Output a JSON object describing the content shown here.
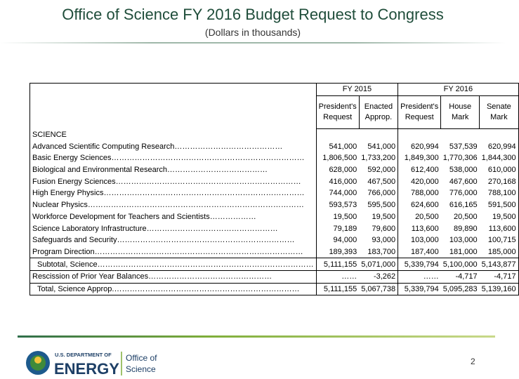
{
  "header": {
    "title": "Office of Science FY 2016 Budget Request to Congress",
    "subtitle": "(Dollars in thousands)"
  },
  "table": {
    "groups": [
      "FY 2015",
      "FY 2016"
    ],
    "columns": [
      "President's Request",
      "Enacted Approp.",
      "President's Request",
      "House Mark",
      "Senate Mark"
    ],
    "section": "SCIENCE",
    "rows": [
      [
        "Advanced Scientific Computing Research……………………………………",
        "541,000",
        "541,000",
        "620,994",
        "537,539",
        "620,994"
      ],
      [
        "Basic Energy Sciences…………………………………………………………………",
        "1,806,500",
        "1,733,200",
        "1,849,300",
        "1,770,306",
        "1,844,300"
      ],
      [
        "Biological and Environmental Research…………………………………",
        "628,000",
        "592,000",
        "612,400",
        "538,000",
        "610,000"
      ],
      [
        "Fusion Energy Sciences………………………………………………………………",
        "416,000",
        "467,500",
        "420,000",
        "467,600",
        "270,168"
      ],
      [
        "High Energy Physics……………………………………………………………………",
        "744,000",
        "766,000",
        "788,000",
        "776,000",
        "788,100"
      ],
      [
        "Nuclear Physics…………………………………………………………………………",
        "593,573",
        "595,500",
        "624,600",
        "616,165",
        "591,500"
      ],
      [
        "Workforce Development for Teachers and Scientists………………",
        "19,500",
        "19,500",
        "20,500",
        "20,500",
        "19,500"
      ],
      [
        "Science Laboratory Infrastructure……………………………………………",
        "79,189",
        "79,600",
        "113,600",
        "89,890",
        "113,600"
      ],
      [
        "Safeguards and Security……………………………………………………………",
        "94,000",
        "93,000",
        "103,000",
        "103,000",
        "100,715"
      ],
      [
        "Program Direction………………………………………………………………………",
        "189,393",
        "183,700",
        "187,400",
        "181,000",
        "185,000"
      ],
      [
        "Subtotal, Science…………………………………………………………………………",
        "5,111,155",
        "5,071,000",
        "5,339,794",
        "5,100,000",
        "5,143,877"
      ],
      [
        "Rescission of Prior Year Balances…………………………………………",
        "……",
        "-3,262",
        "……",
        "-4,717",
        "-4,717"
      ],
      [
        "Total, Science Approp.………………………………………………………………",
        "5,111,155",
        "5,067,738",
        "5,339,794",
        "5,095,283",
        "5,139,160"
      ]
    ]
  },
  "footer": {
    "agency": "U.S. DEPARTMENT OF",
    "name": "ENERGY",
    "office": "Office of",
    "office2": "Science",
    "page": "2"
  }
}
